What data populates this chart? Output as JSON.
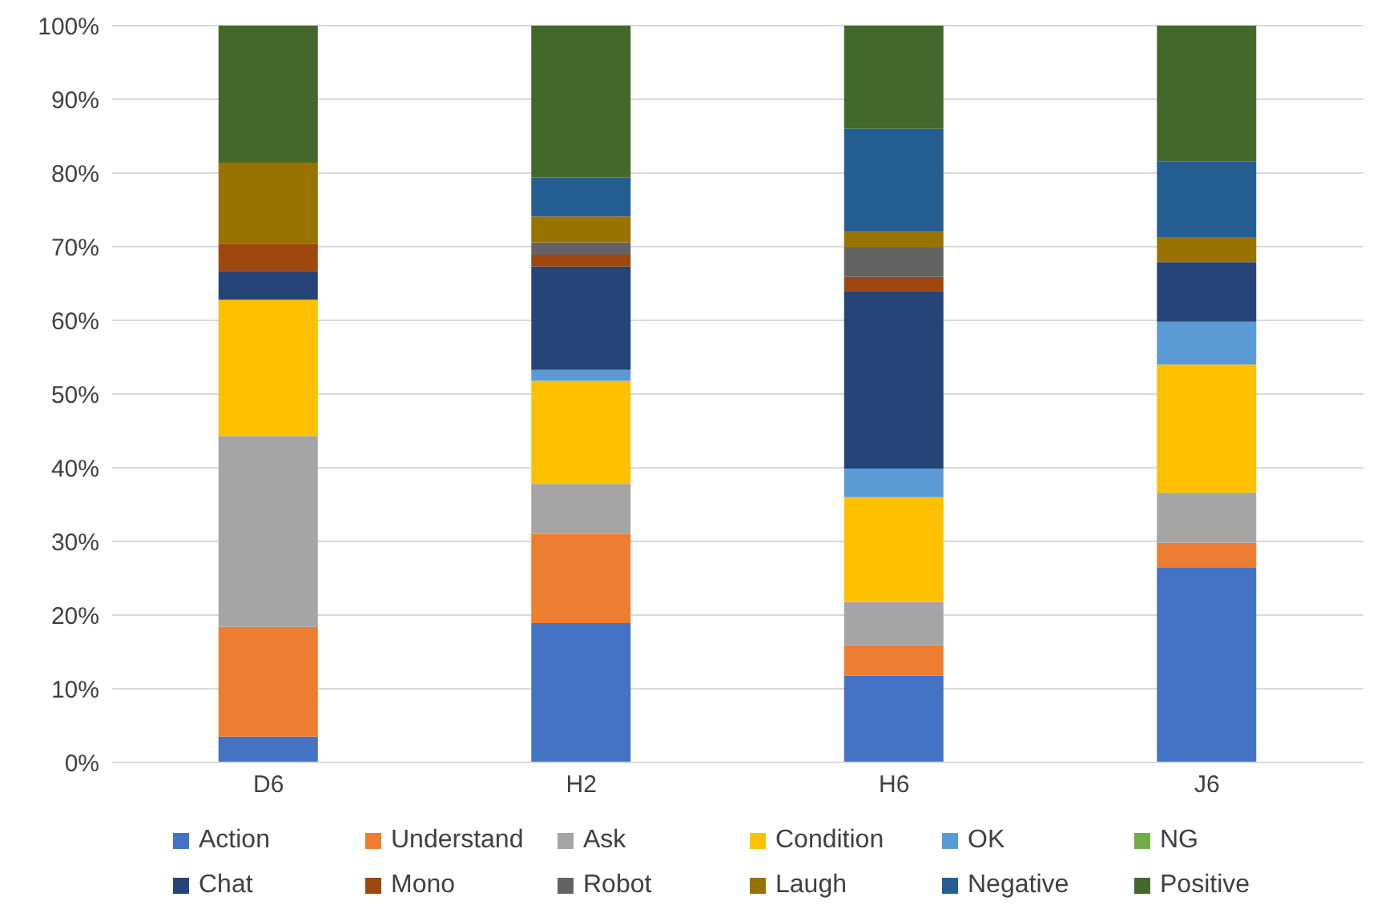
{
  "chart_data": {
    "type": "bar",
    "stacked": true,
    "categories": [
      "D6",
      "H2",
      "H6",
      "J6"
    ],
    "series": [
      {
        "name": "Action",
        "color": "#4472c4",
        "values": [
          3.5,
          18.9,
          11.8,
          26.4
        ]
      },
      {
        "name": "Understand",
        "color": "#ed7d31",
        "values": [
          14.9,
          12.1,
          4.1,
          3.4
        ]
      },
      {
        "name": "Ask",
        "color": "#a5a5a5",
        "values": [
          25.9,
          6.8,
          5.9,
          6.8
        ]
      },
      {
        "name": "Condition",
        "color": "#ffc000",
        "values": [
          18.5,
          14.0,
          14.2,
          17.4
        ]
      },
      {
        "name": "OK",
        "color": "#5b9bd5",
        "values": [
          0,
          1.5,
          3.9,
          5.8
        ]
      },
      {
        "name": "NG",
        "color": "#70ad47",
        "values": [
          0,
          0,
          0,
          0
        ]
      },
      {
        "name": "Chat",
        "color": "#264478",
        "values": [
          3.9,
          14.0,
          24.1,
          8.1
        ]
      },
      {
        "name": "Mono",
        "color": "#9e480e",
        "values": [
          3.7,
          1.6,
          1.9,
          0
        ]
      },
      {
        "name": "Robot",
        "color": "#636363",
        "values": [
          0,
          1.7,
          4.0,
          0
        ]
      },
      {
        "name": "Laugh",
        "color": "#997300",
        "values": [
          11.0,
          3.5,
          2.1,
          3.4
        ]
      },
      {
        "name": "Negative",
        "color": "#255e91",
        "values": [
          0,
          5.3,
          14.0,
          10.3
        ]
      },
      {
        "name": "Positive",
        "color": "#43682b",
        "values": [
          18.6,
          20.6,
          14.0,
          18.4
        ]
      }
    ],
    "ylim": [
      0,
      100
    ],
    "yticks": [
      {
        "value": 0,
        "label": "0%"
      },
      {
        "value": 10,
        "label": "10%"
      },
      {
        "value": 20,
        "label": "20%"
      },
      {
        "value": 30,
        "label": "30%"
      },
      {
        "value": 40,
        "label": "40%"
      },
      {
        "value": 50,
        "label": "50%"
      },
      {
        "value": 60,
        "label": "60%"
      },
      {
        "value": 70,
        "label": "70%"
      },
      {
        "value": 80,
        "label": "80%"
      },
      {
        "value": 90,
        "label": "90%"
      },
      {
        "value": 100,
        "label": "100%"
      }
    ],
    "grid": "y",
    "legend": "bottom"
  }
}
